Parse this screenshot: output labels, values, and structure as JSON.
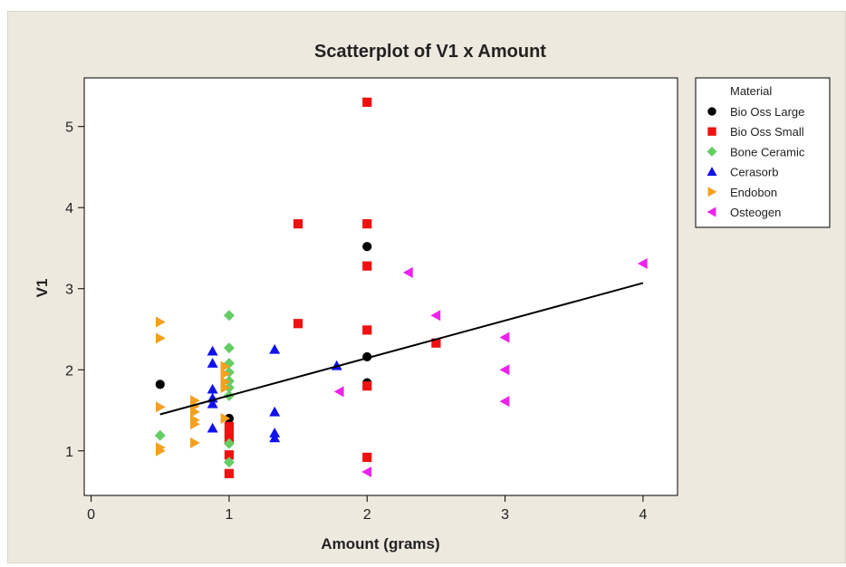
{
  "chart_data": {
    "type": "scatter",
    "title": "Scatterplot of V1 x Amount",
    "xlabel": "Amount (grams)",
    "ylabel": "V1",
    "xlim": [
      -0.05,
      4.25
    ],
    "ylim": [
      0.45,
      5.6
    ],
    "xticks": [
      0,
      1,
      2,
      3,
      4
    ],
    "yticks": [
      1,
      2,
      3,
      4,
      5
    ],
    "grid": false,
    "legend": {
      "title": "Material",
      "position": "right"
    },
    "series": [
      {
        "name": "Bio Oss Large",
        "marker": "circle",
        "color": "#000000",
        "points": [
          [
            0.5,
            1.82
          ],
          [
            1.0,
            1.4
          ],
          [
            2.0,
            3.52
          ],
          [
            2.0,
            2.16
          ],
          [
            2.0,
            1.84
          ]
        ]
      },
      {
        "name": "Bio Oss Small",
        "marker": "square",
        "color": "#ee1111",
        "points": [
          [
            1.0,
            1.3
          ],
          [
            1.0,
            1.22
          ],
          [
            1.0,
            1.15
          ],
          [
            1.0,
            0.95
          ],
          [
            1.0,
            0.72
          ],
          [
            1.5,
            3.8
          ],
          [
            1.5,
            2.57
          ],
          [
            2.0,
            5.3
          ],
          [
            2.0,
            3.8
          ],
          [
            2.0,
            3.28
          ],
          [
            2.0,
            2.49
          ],
          [
            2.0,
            1.8
          ],
          [
            2.0,
            0.92
          ],
          [
            2.5,
            2.33
          ]
        ]
      },
      {
        "name": "Bone Ceramic",
        "marker": "diamond",
        "color": "#66cc66",
        "points": [
          [
            0.5,
            1.19
          ],
          [
            1.0,
            2.67
          ],
          [
            1.0,
            2.27
          ],
          [
            1.0,
            2.08
          ],
          [
            1.0,
            1.97
          ],
          [
            1.0,
            1.86
          ],
          [
            1.0,
            1.78
          ],
          [
            1.0,
            1.68
          ],
          [
            1.0,
            1.09
          ],
          [
            1.0,
            0.86
          ]
        ]
      },
      {
        "name": "Cerasorb",
        "marker": "triangle-up",
        "color": "#1111ee",
        "points": [
          [
            0.88,
            2.23
          ],
          [
            0.88,
            2.08
          ],
          [
            0.88,
            1.76
          ],
          [
            0.88,
            1.65
          ],
          [
            0.88,
            1.58
          ],
          [
            0.88,
            1.28
          ],
          [
            1.33,
            2.25
          ],
          [
            1.33,
            1.48
          ],
          [
            1.33,
            1.22
          ],
          [
            1.33,
            1.16
          ],
          [
            1.78,
            2.05
          ]
        ]
      },
      {
        "name": "Endobon",
        "marker": "triangle-right",
        "color": "#f5a020",
        "points": [
          [
            0.5,
            2.59
          ],
          [
            0.5,
            2.39
          ],
          [
            0.5,
            1.54
          ],
          [
            0.5,
            1.04
          ],
          [
            0.5,
            1.0
          ],
          [
            0.75,
            1.62
          ],
          [
            0.75,
            1.55
          ],
          [
            0.75,
            1.48
          ],
          [
            0.75,
            1.38
          ],
          [
            0.75,
            1.33
          ],
          [
            0.75,
            1.1
          ],
          [
            0.97,
            2.04
          ],
          [
            0.97,
            1.95
          ],
          [
            0.97,
            1.85
          ],
          [
            0.97,
            1.78
          ],
          [
            0.97,
            1.4
          ]
        ]
      },
      {
        "name": "Osteogen",
        "marker": "triangle-left",
        "color": "#ee22ee",
        "points": [
          [
            1.8,
            1.73
          ],
          [
            2.0,
            0.74
          ],
          [
            2.3,
            3.2
          ],
          [
            2.5,
            2.67
          ],
          [
            3.0,
            2.4
          ],
          [
            3.0,
            2.0
          ],
          [
            3.0,
            1.61
          ],
          [
            4.0,
            3.31
          ]
        ]
      }
    ],
    "fit_line": {
      "x": [
        0.5,
        4.0
      ],
      "y": [
        1.45,
        3.07
      ]
    }
  }
}
